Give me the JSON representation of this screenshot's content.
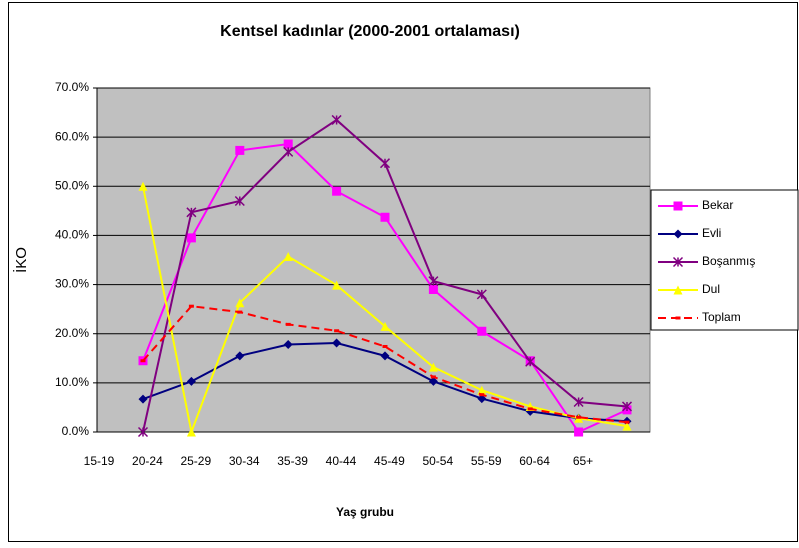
{
  "chart_data": {
    "type": "line",
    "title": "Kentsel kadınlar (2000-2001 ortalaması)",
    "x_label": "Yaş grubu",
    "y_label": "İKO",
    "categories": [
      "15-19",
      "20-24",
      "25-29",
      "30-34",
      "35-39",
      "40-44",
      "45-49",
      "50-54",
      "55-59",
      "60-64",
      "65+"
    ],
    "series": [
      {
        "name": "Bekar",
        "color": "#ff00ff",
        "marker": "square",
        "values": [
          14.5,
          39.5,
          57.3,
          58.6,
          49.0,
          43.7,
          29.0,
          20.5,
          14.5,
          0.0,
          4.5
        ]
      },
      {
        "name": "Evli",
        "color": "#000080",
        "marker": "diamond",
        "values": [
          6.7,
          10.3,
          15.5,
          17.8,
          18.1,
          15.5,
          10.3,
          6.8,
          4.2,
          2.8,
          2.2
        ]
      },
      {
        "name": "Boşanmış",
        "color": "#800080",
        "marker": "star",
        "values": [
          0.0,
          44.7,
          47.0,
          57.0,
          63.5,
          54.7,
          30.7,
          28.0,
          14.3,
          6.1,
          5.2
        ]
      },
      {
        "name": "Dul",
        "color": "#ffff00",
        "marker": "triangle",
        "values": [
          50.0,
          0.0,
          26.3,
          35.7,
          29.9,
          21.5,
          13.2,
          8.5,
          5.2,
          2.8,
          1.2
        ]
      },
      {
        "name": "Toplam",
        "color": "#ff0000",
        "marker": "dash",
        "dashed": true,
        "values": [
          14.5,
          25.6,
          24.4,
          21.9,
          20.6,
          17.4,
          11.2,
          7.6,
          4.7,
          3.0,
          2.0
        ]
      }
    ],
    "ylim": [
      0,
      70
    ],
    "yticks": [
      {
        "value": 0,
        "label": "0.0%"
      },
      {
        "value": 10,
        "label": "10.0%"
      },
      {
        "value": 20,
        "label": "20.0%"
      },
      {
        "value": 30,
        "label": "30.0%"
      },
      {
        "value": 40,
        "label": "40.0%"
      },
      {
        "value": 50,
        "label": "50.0%"
      },
      {
        "value": 60,
        "label": "60.0%"
      },
      {
        "value": 70,
        "label": "70.0%"
      }
    ],
    "grid": true,
    "legend": "right"
  }
}
